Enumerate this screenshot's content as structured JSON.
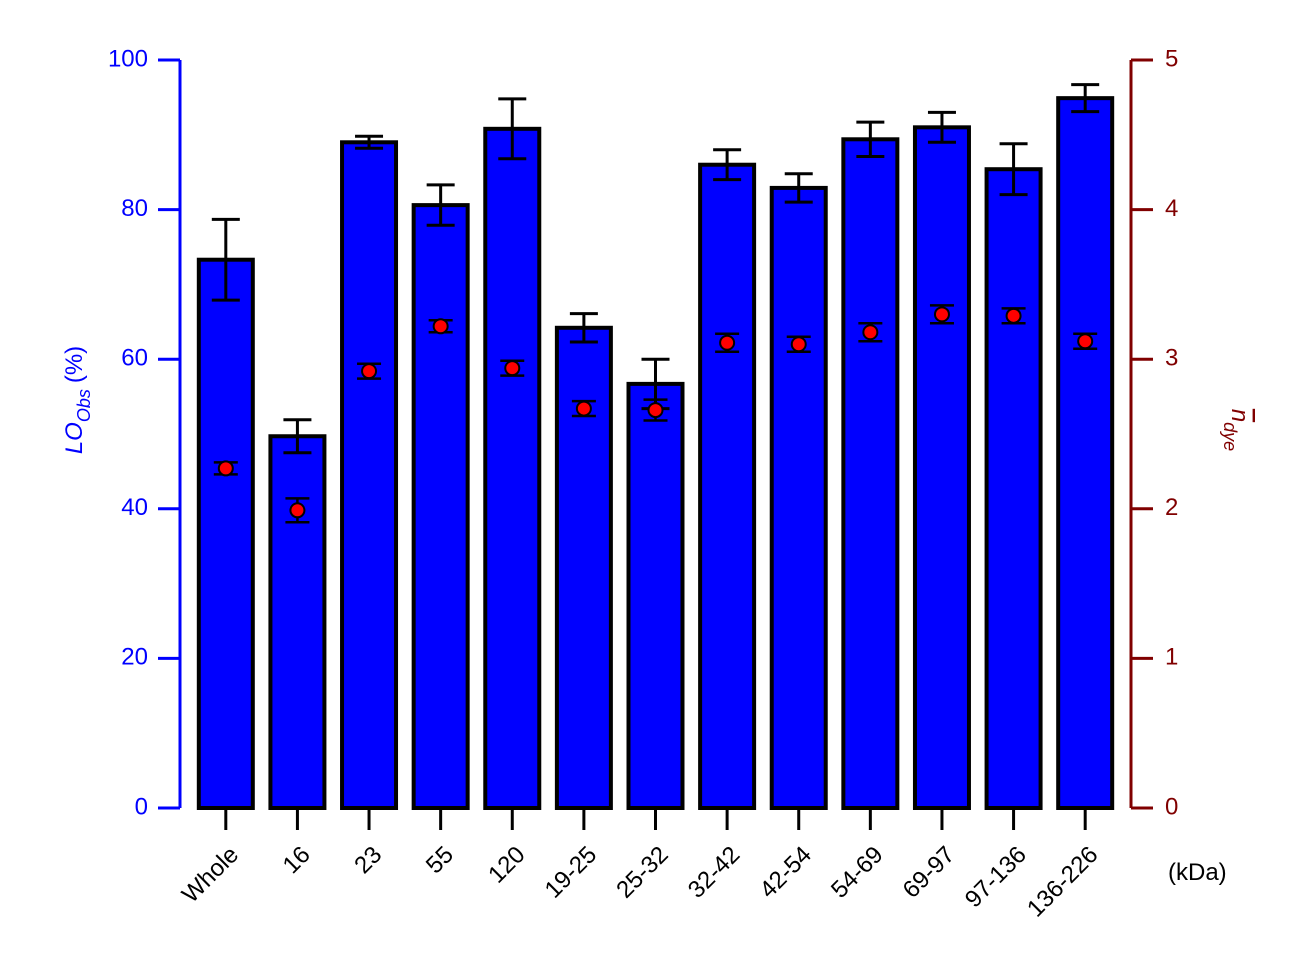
{
  "chart_data": {
    "type": "bar",
    "categories": [
      "Whole",
      "16",
      "23",
      "55",
      "120",
      "19-25",
      "25-32",
      "32-42",
      "42-54",
      "54-69",
      "69-97",
      "97-136",
      "136-226"
    ],
    "x_unit": "(kDa)",
    "ylabel": {
      "main": "LO",
      "sub": "Obs",
      "unit": "(%)"
    },
    "y2label": {
      "main": "n",
      "sub": "dye"
    },
    "series": [
      {
        "color": "#0000ff",
        "edgecolor": "#000000",
        "values": [
          73.3,
          49.7,
          89.0,
          80.6,
          90.8,
          64.2,
          56.7,
          86.0,
          82.9,
          89.4,
          91.0,
          85.4,
          94.9
        ],
        "errors": [
          5.4,
          2.2,
          0.8,
          2.7,
          4.0,
          1.9,
          3.3,
          2.0,
          1.9,
          2.3,
          2.0,
          3.4,
          1.8
        ]
      },
      {
        "type": "scatter",
        "axis": "y2",
        "color": "#ff0000",
        "values": [
          2.27,
          1.99,
          2.92,
          3.22,
          2.94,
          2.67,
          2.66,
          3.11,
          3.1,
          3.18,
          3.3,
          3.29,
          3.12
        ],
        "errors": [
          0.04,
          0.08,
          0.05,
          0.04,
          0.05,
          0.05,
          0.07,
          0.06,
          0.05,
          0.06,
          0.06,
          0.05,
          0.05
        ]
      }
    ],
    "ylim": [
      0,
      100
    ],
    "yticks": [
      0,
      20,
      40,
      60,
      80,
      100
    ],
    "ycolor": "#0000ff",
    "y2lim": [
      0,
      5
    ],
    "y2ticks": [
      0,
      1,
      2,
      3,
      4,
      5
    ],
    "y2color": "#800000"
  }
}
